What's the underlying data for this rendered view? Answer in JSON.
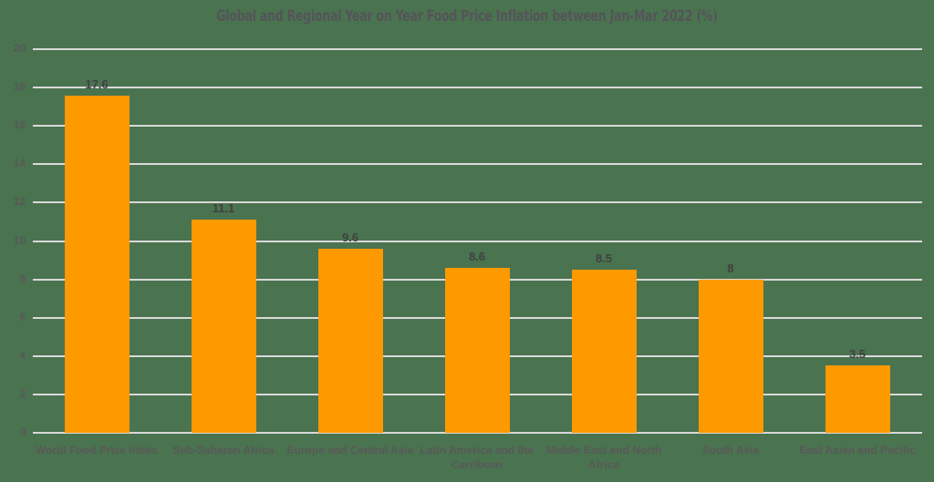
{
  "chart_data": {
    "type": "bar",
    "title": "Global and Regional Year on Year Food Price Inflation between Jan-Mar 2022 (%)",
    "xlabel": "",
    "ylabel": "",
    "categories": [
      "World Food Price Index",
      "Sub-Saharan Africa",
      "Europe and Central Asia",
      "Latin America and the Carribean",
      "Middle East and North Africa",
      "South Asia",
      "East Asian and Pacific"
    ],
    "values": [
      17.6,
      11.1,
      9.6,
      8.6,
      8.5,
      8,
      3.5
    ],
    "data_labels": [
      "17.6",
      "11.1",
      "9.6",
      "8.6",
      "8.5",
      "8",
      "3.5"
    ],
    "ylim": [
      0,
      20
    ],
    "yticks": [
      0,
      2,
      4,
      6,
      8,
      10,
      12,
      14,
      16,
      18,
      20
    ],
    "grid": true,
    "legend": null,
    "colors": {
      "bar": "#ff9900",
      "background": "#4a7350",
      "grid": "#d9d9d9"
    }
  }
}
